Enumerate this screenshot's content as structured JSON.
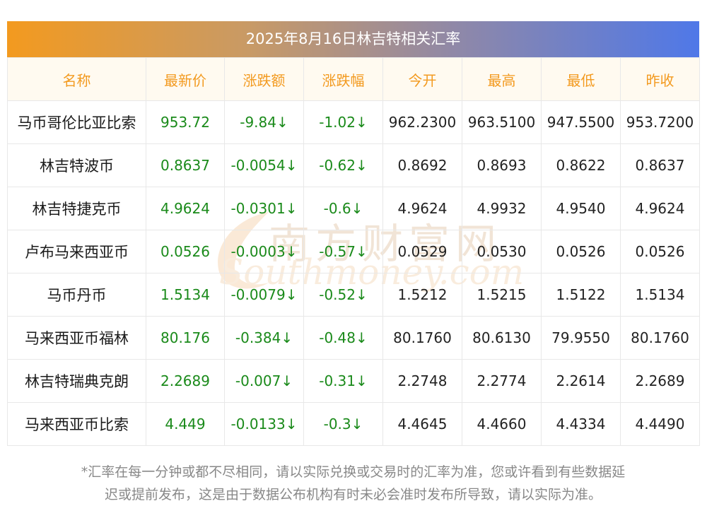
{
  "title": "2025年8月16日林吉特相关汇率",
  "headers": [
    "名称",
    "最新价",
    "涨跌额",
    "涨跌幅",
    "今开",
    "最高",
    "最低",
    "昨收"
  ],
  "rows": [
    {
      "name": "马币哥伦比亚比索",
      "latest": "953.72",
      "change": "-9.84↓",
      "pct": "-1.02↓",
      "open": "962.2300",
      "high": "963.5100",
      "low": "947.5500",
      "prev": "953.7200"
    },
    {
      "name": "林吉特波币",
      "latest": "0.8637",
      "change": "-0.0054↓",
      "pct": "-0.62↓",
      "open": "0.8692",
      "high": "0.8693",
      "low": "0.8622",
      "prev": "0.8637"
    },
    {
      "name": "林吉特捷克币",
      "latest": "4.9624",
      "change": "-0.0301↓",
      "pct": "-0.6↓",
      "open": "4.9624",
      "high": "4.9932",
      "low": "4.9540",
      "prev": "4.9624"
    },
    {
      "name": "卢布马来西亚币",
      "latest": "0.0526",
      "change": "-0.0003↓",
      "pct": "-0.57↓",
      "open": "0.0529",
      "high": "0.0530",
      "low": "0.0526",
      "prev": "0.0526"
    },
    {
      "name": "马币丹币",
      "latest": "1.5134",
      "change": "-0.0079↓",
      "pct": "-0.52↓",
      "open": "1.5212",
      "high": "1.5215",
      "low": "1.5122",
      "prev": "1.5134"
    },
    {
      "name": "马来西亚币福林",
      "latest": "80.176",
      "change": "-0.384↓",
      "pct": "-0.48↓",
      "open": "80.1760",
      "high": "80.6130",
      "low": "79.9550",
      "prev": "80.1760"
    },
    {
      "name": "林吉特瑞典克朗",
      "latest": "2.2689",
      "change": "-0.007↓",
      "pct": "-0.31↓",
      "open": "2.2748",
      "high": "2.2774",
      "low": "2.2614",
      "prev": "2.2689"
    },
    {
      "name": "马来西亚币比索",
      "latest": "4.449",
      "change": "-0.0133↓",
      "pct": "-0.3↓",
      "open": "4.4645",
      "high": "4.4660",
      "low": "4.4334",
      "prev": "4.4490"
    }
  ],
  "footnote_line1": "*汇率在每一分钟或都不尽相同，请以实际兑换或交易时的汇率为准，您或许看到有些数据延",
  "footnote_line2": "迟或提前发布，这是由于数据公布机构有时未必会准时发布所导致，请以实际为准。",
  "watermark": {
    "cn": "南方财富网",
    "en": "Southmoney.com"
  },
  "colors": {
    "header_text": "#f39a1f",
    "gradient_start": "#f39a1f",
    "gradient_end": "#4f78e8",
    "down_green": "#1a8a1a"
  }
}
